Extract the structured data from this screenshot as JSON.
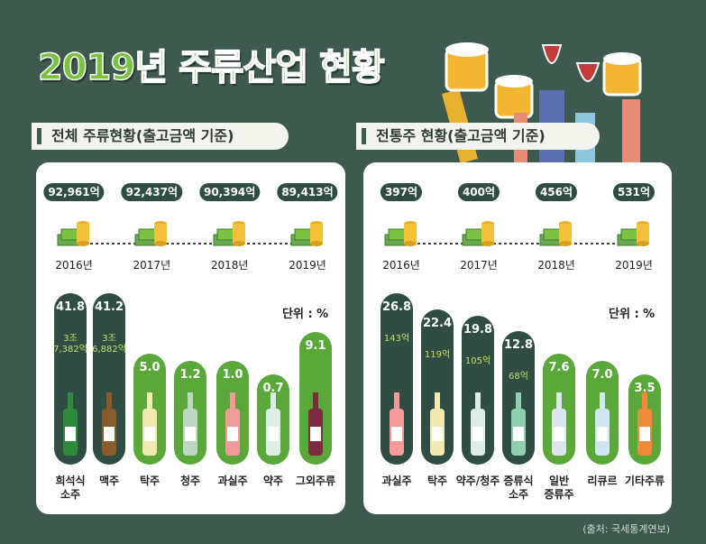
{
  "title": "2019년 주류산업 현황",
  "panels": [
    {
      "heading": "전체 주류현황(출고금액 기준)",
      "years": [
        {
          "year": "2016년",
          "amount": "92,961억"
        },
        {
          "year": "2017년",
          "amount": "92,437억"
        },
        {
          "year": "2018년",
          "amount": "90,394억"
        },
        {
          "year": "2019년",
          "amount": "89,413억"
        }
      ],
      "unit": "단위 : %",
      "items": [
        {
          "label": "희석식\n소주",
          "value": "41.8",
          "note": "3조\n7,382억"
        },
        {
          "label": "맥주",
          "value": "41.2",
          "note": "3조\n6,882억"
        },
        {
          "label": "탁주",
          "value": "5.0"
        },
        {
          "label": "청주",
          "value": "1.2"
        },
        {
          "label": "과실주",
          "value": "1.0"
        },
        {
          "label": "약주",
          "value": "0.7"
        },
        {
          "label": "그외주류",
          "value": "9.1"
        }
      ]
    },
    {
      "heading": "전통주 현황(출고금액 기준)",
      "years": [
        {
          "year": "2016년",
          "amount": "397억"
        },
        {
          "year": "2017년",
          "amount": "400억"
        },
        {
          "year": "2018년",
          "amount": "456억"
        },
        {
          "year": "2019년",
          "amount": "531억"
        }
      ],
      "unit": "단위 : %",
      "items": [
        {
          "label": "과실주",
          "value": "26.8",
          "note": "143억"
        },
        {
          "label": "탁주",
          "value": "22.4",
          "note": "119억"
        },
        {
          "label": "약주/청주",
          "value": "19.8",
          "note": "105억"
        },
        {
          "label": "증류식\n소주",
          "value": "12.8",
          "note": "68억"
        },
        {
          "label": "일반\n증류주",
          "value": "7.6"
        },
        {
          "label": "리큐르",
          "value": "7.0"
        },
        {
          "label": "기타주류",
          "value": "3.5"
        }
      ]
    }
  ],
  "source": "(출처: 국세통계연보)"
}
